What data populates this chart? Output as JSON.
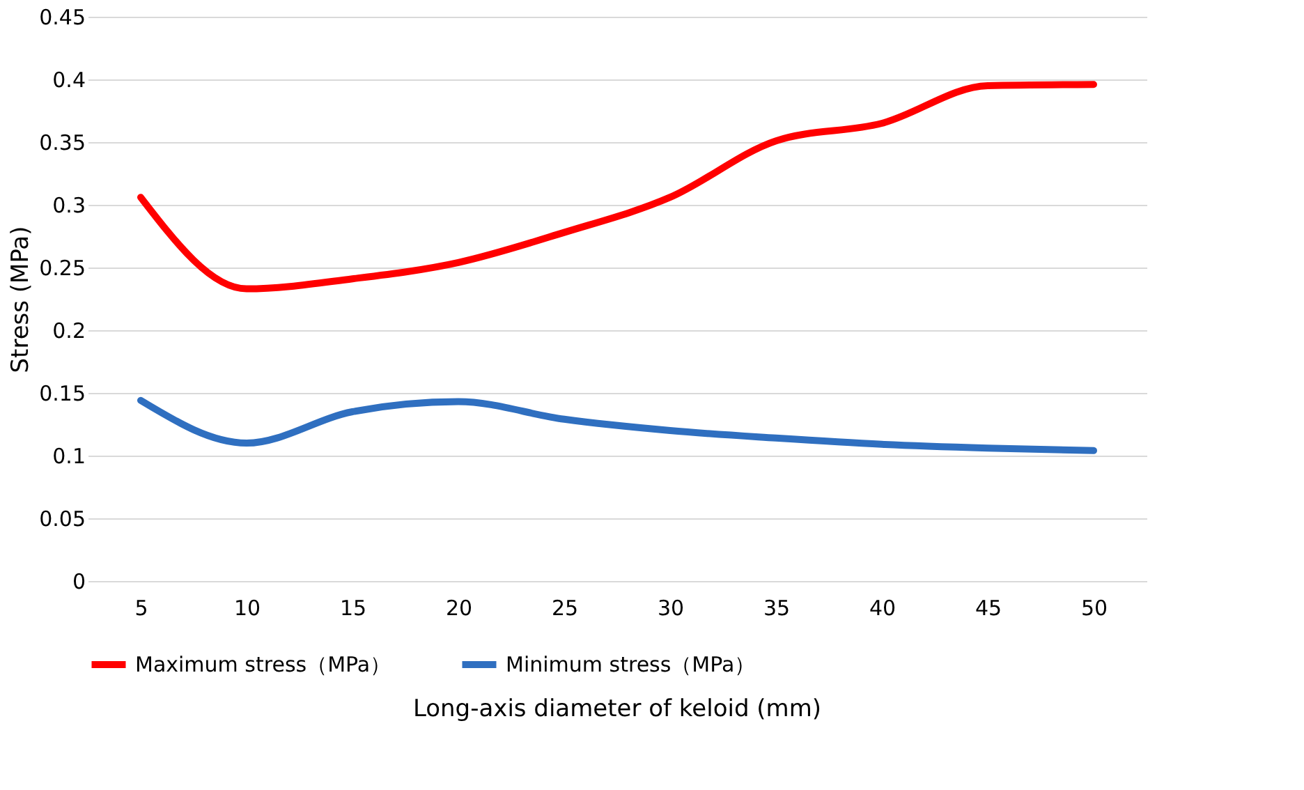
{
  "chart_data": {
    "type": "line",
    "xlabel": "Long-axis diameter of keloid (mm)",
    "ylabel": "Stress (MPa)",
    "categories": [
      "5",
      "10",
      "15",
      "20",
      "25",
      "30",
      "35",
      "40",
      "45",
      "50"
    ],
    "series": [
      {
        "name": "Maximum stress（MPa）",
        "color": "#ff0000",
        "values": [
          0.306,
          0.233,
          0.241,
          0.254,
          0.278,
          0.306,
          0.351,
          0.365,
          0.395,
          0.396
        ]
      },
      {
        "name": "Minimum stress（MPa）",
        "color": "#2f6fc0",
        "values": [
          0.144,
          0.11,
          0.135,
          0.143,
          0.129,
          0.12,
          0.114,
          0.109,
          0.106,
          0.104
        ]
      }
    ],
    "ylim": [
      0,
      0.45
    ],
    "yticks": [
      0,
      0.05,
      0.1,
      0.15,
      0.2,
      0.25,
      0.3,
      0.35,
      0.4,
      0.45
    ],
    "grid": "y",
    "legend": "bottom",
    "marker": "none",
    "line_style": "solid"
  }
}
